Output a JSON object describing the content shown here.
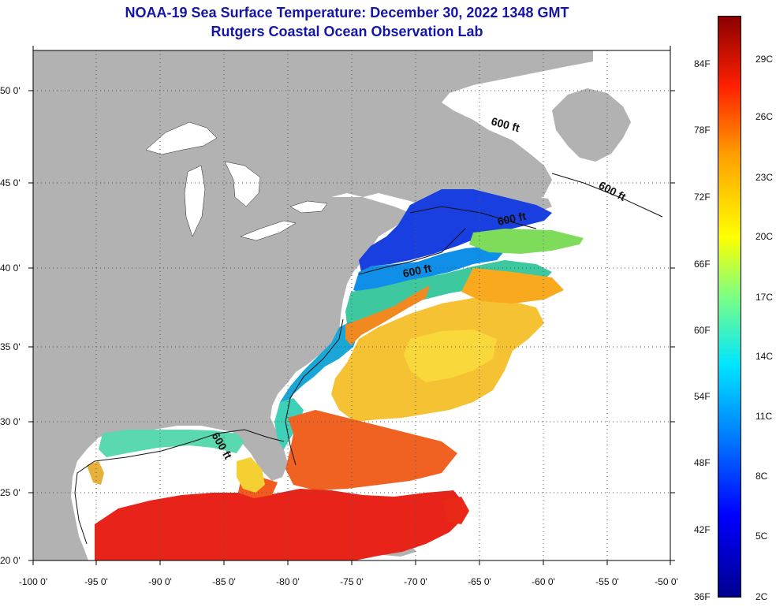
{
  "title": {
    "line1": "NOAA-19 Sea Surface Temperature:  December 30, 2022 1348 GMT",
    "line2": "Rutgers Coastal Ocean Observation Lab"
  },
  "map": {
    "lat_labels": [
      "50 0'",
      "45 0'",
      "40 0'",
      "35 0'",
      "30 0'",
      "25 0'",
      "20 0'"
    ],
    "lon_labels": [
      "-100 0'",
      "-95 0'",
      "-90 0'",
      "-85 0'",
      "-80 0'",
      "-75 0'",
      "-70 0'",
      "-65 0'",
      "-60 0'",
      "-55 0'",
      "-50 0'"
    ],
    "contour_labels": [
      "600 ft",
      "600 ft",
      "600 ft",
      "600 ft",
      "600 ft"
    ],
    "colors": {
      "land": "#b2b2b2",
      "ocean_nodata": "#ffffff",
      "title": "#1515a8"
    }
  },
  "colorbar": {
    "fahrenheit": [
      "84F",
      "78F",
      "72F",
      "66F",
      "60F",
      "54F",
      "48F",
      "42F",
      "36F"
    ],
    "celsius": [
      "29C",
      "26C",
      "23C",
      "20C",
      "17C",
      "14C",
      "11C",
      "8C",
      "5C",
      "2C"
    ]
  }
}
